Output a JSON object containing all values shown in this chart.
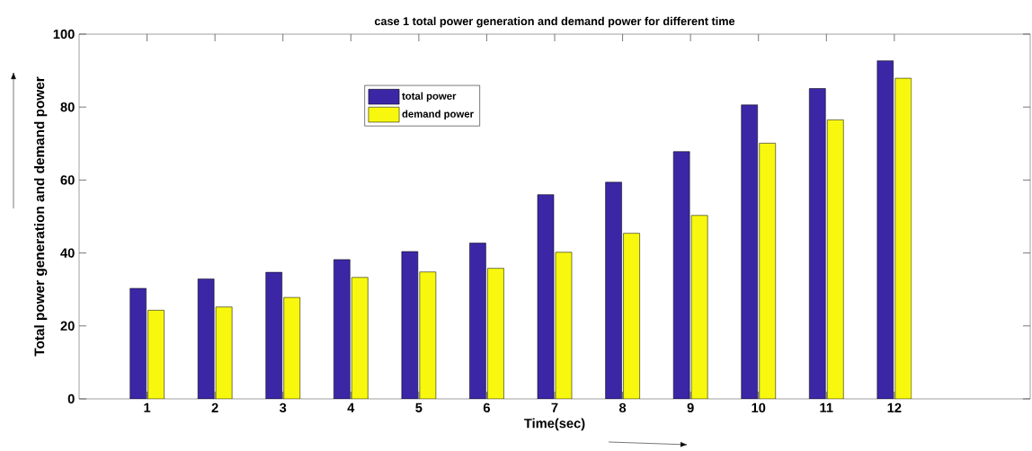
{
  "chart_data": {
    "type": "bar",
    "title": "case 1 total power generation and demand power for different time",
    "xlabel": "Time(sec)",
    "ylabel": "Total power generation and demand power",
    "categories": [
      "1",
      "2",
      "3",
      "4",
      "5",
      "6",
      "7",
      "8",
      "9",
      "10",
      "11",
      "12"
    ],
    "series": [
      {
        "name": "total power",
        "color": "#3b27a6",
        "values": [
          30.3,
          32.9,
          34.7,
          38.2,
          40.4,
          42.7,
          56.0,
          59.4,
          67.8,
          80.6,
          85.1,
          92.7
        ]
      },
      {
        "name": "demand power",
        "color": "#f8f80f",
        "values": [
          24.3,
          25.2,
          27.8,
          33.3,
          34.8,
          35.8,
          40.2,
          45.4,
          50.3,
          70.1,
          76.5,
          87.9
        ]
      }
    ],
    "ylim": [
      0,
      100
    ],
    "yticks": [
      0,
      20,
      40,
      60,
      80,
      100
    ],
    "grid": false,
    "legend": "top"
  }
}
